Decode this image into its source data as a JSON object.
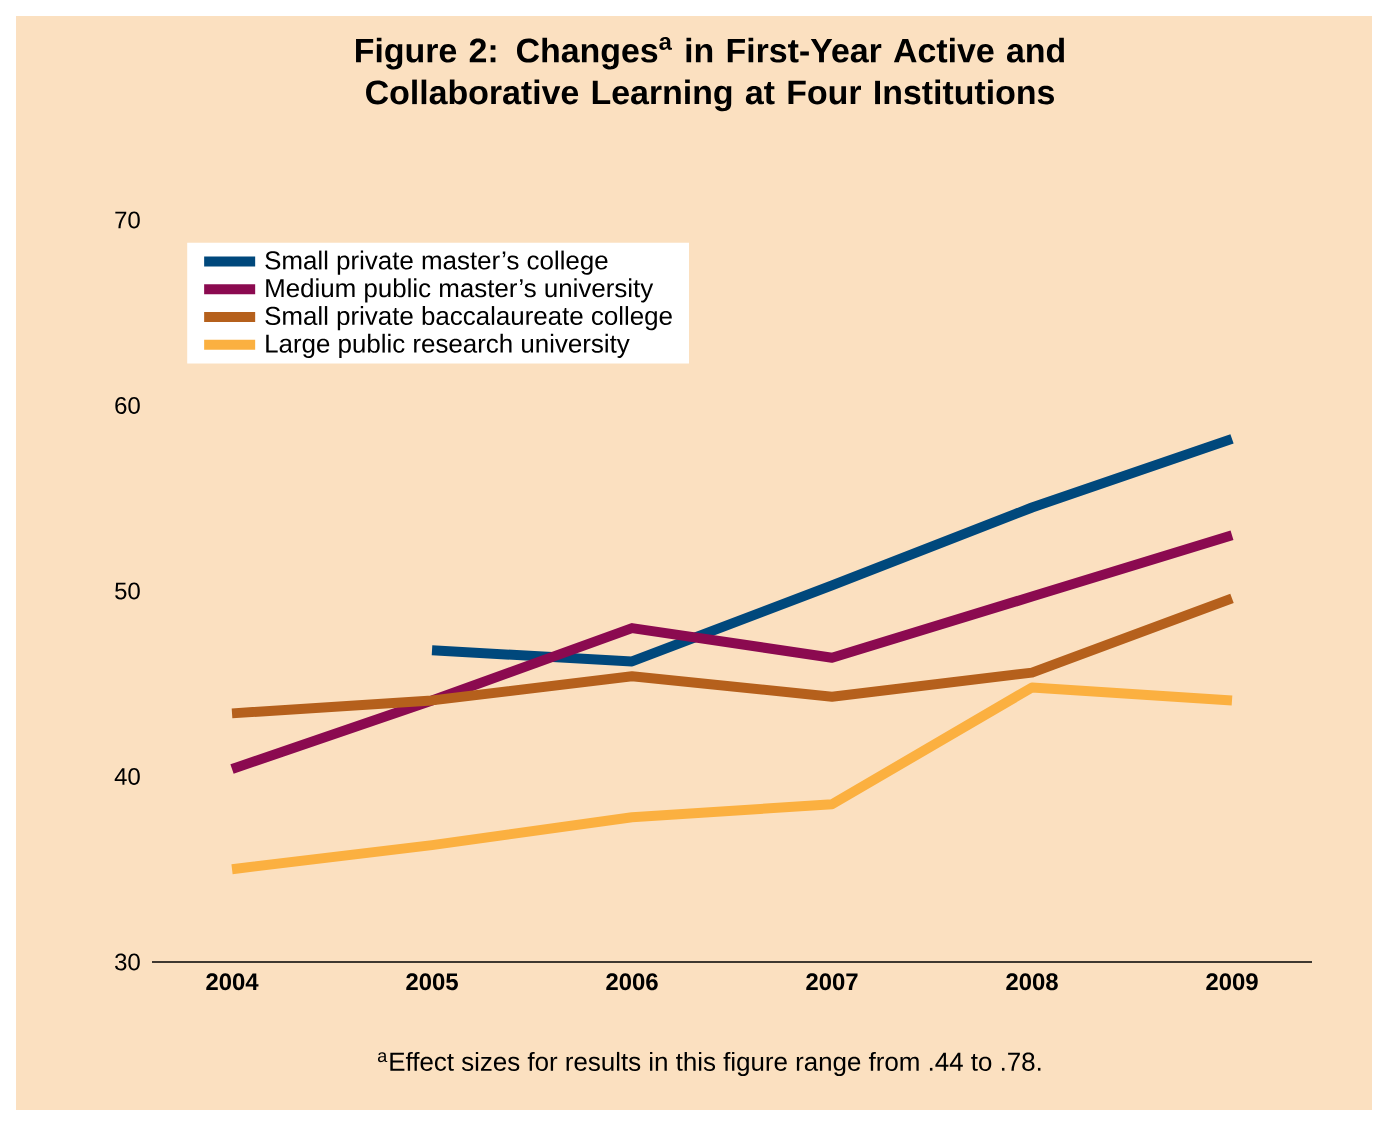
{
  "chart_data": {
    "type": "line",
    "title": "Figure 2: Changes$^{a}$ in First-Year Active and Collaborative Learning at Four Institutions",
    "categories": [
      "2004",
      "2005",
      "2006",
      "2007",
      "2008",
      "2009"
    ],
    "series": [
      {
        "name": "Small private master’s college",
        "color": "#00487c",
        "values": [
          null,
          46.8,
          46.2,
          50.3,
          54.5,
          58.2
        ]
      },
      {
        "name": "Medium public master’s university",
        "color": "#8b0a50",
        "values": [
          40.4,
          44.1,
          48.0,
          46.4,
          49.7,
          53.0
        ]
      },
      {
        "name": "Small private baccalaureate college",
        "color": "#b5601c",
        "values": [
          43.4,
          44.1,
          45.4,
          44.3,
          45.6,
          49.6
        ]
      },
      {
        "name": "Large public research university",
        "color": "#fbb040",
        "values": [
          35.0,
          36.3,
          37.8,
          38.5,
          44.8,
          44.1
        ]
      }
    ],
    "ylim": [
      30,
      70
    ],
    "yticks": [
      30,
      40,
      50,
      60,
      70
    ],
    "legend": "top left",
    "annotations": [
      "$^{a}$Effect sizes for results in this figure range from .44 to .78."
    ]
  }
}
